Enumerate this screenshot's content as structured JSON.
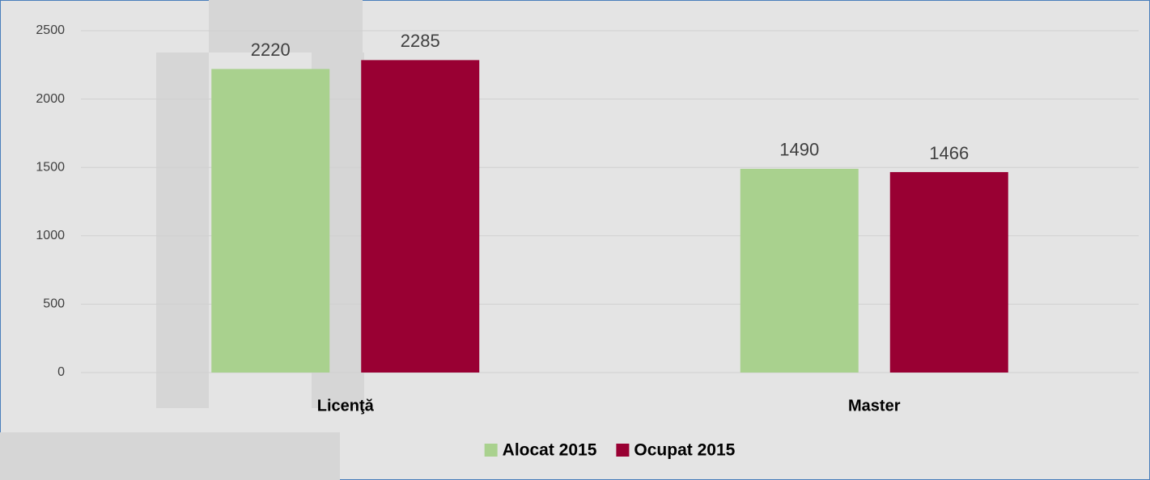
{
  "chart_data": {
    "type": "bar",
    "categories": [
      "Licenţă",
      "Master"
    ],
    "series": [
      {
        "name": "Alocat 2015",
        "color": "#a9d18e",
        "values": [
          2220,
          1490
        ]
      },
      {
        "name": "Ocupat 2015",
        "color": "#990033",
        "values": [
          2285,
          1466
        ]
      }
    ],
    "ylim": [
      0,
      2500
    ],
    "yticks": [
      0,
      500,
      1000,
      1500,
      2000,
      2500
    ],
    "grid": true,
    "legend": "bottom"
  }
}
